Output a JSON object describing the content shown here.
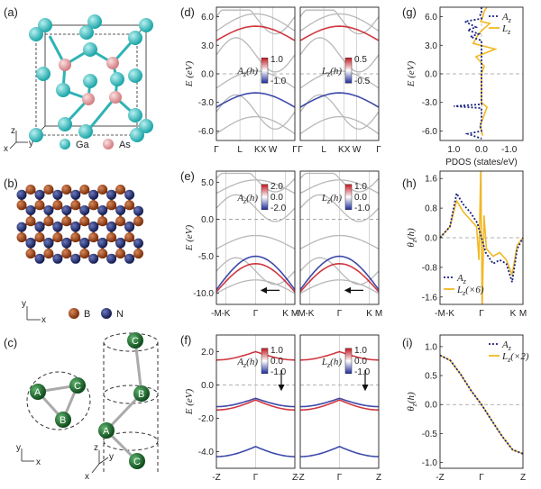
{
  "panel_labels": [
    "(a)",
    "(b)",
    "(c)",
    "(d)",
    "(e)",
    "(f)",
    "(g)",
    "(h)",
    "(i)"
  ],
  "structures": {
    "a": {
      "legend": [
        "Ga",
        "As"
      ],
      "axes": [
        "z",
        "x",
        "y"
      ],
      "colors": {
        "Ga": "#3cc2c2",
        "As": "#e59da0"
      }
    },
    "b": {
      "legend": [
        "B",
        "N"
      ],
      "axes": [
        "y",
        "x"
      ],
      "colors": {
        "B": "#8b3a12",
        "N": "#1f2a63"
      }
    },
    "c": {
      "atoms": [
        "A",
        "B",
        "C"
      ],
      "axes": [
        "y",
        "x"
      ],
      "axes3d": [
        "z",
        "y",
        "x"
      ],
      "colors": {
        "atom": "#1e6b2e"
      }
    }
  },
  "panels": {
    "d": {
      "ylabel": "E (eV)",
      "yticks": [
        "6.0",
        "3.0",
        "0.0",
        "-3.0",
        "-6.0"
      ],
      "xticks": [
        "Γ",
        "L",
        "KX",
        "W",
        "Γ"
      ],
      "left_cbar": {
        "label": "A_z(h)",
        "max": "1.0",
        "min": "-1.0"
      },
      "right_cbar": {
        "label": "L_z(h)",
        "max": "0.5",
        "min": "-0.5"
      }
    },
    "e": {
      "ylabel": "E (eV)",
      "yticks": [
        "5.0",
        "0.0",
        "-5.0",
        "-10.0"
      ],
      "xticks": [
        "-M",
        "-K",
        "Γ",
        "K",
        "M"
      ],
      "left_cbar": {
        "label": "A_z(h)",
        "max": "2.0",
        "mid": "0.0",
        "min": "-2.0"
      },
      "right_cbar": {
        "label": "L_z(h)",
        "max": "1.0",
        "mid": "0.0",
        "min": "-1.0"
      }
    },
    "f": {
      "ylabel": "E (eV)",
      "yticks": [
        "2.0",
        "0.0",
        "-2.0",
        "-4.0"
      ],
      "xticks": [
        "-Z",
        "Γ",
        "Z"
      ],
      "left_cbar": {
        "label": "A_z(h)",
        "max": "1.0",
        "mid": "0.0",
        "min": "-1.0"
      },
      "right_cbar": {
        "label": "L_z(h)",
        "max": "1.0",
        "mid": "0.0",
        "min": "-1.0"
      }
    }
  },
  "chart_data": [
    {
      "panel": "g",
      "type": "line",
      "xlabel": "PDOS (states/eV)",
      "ylabel": "E (eV)",
      "xticks": [
        "1.0",
        "0.0",
        "-1.0"
      ],
      "yticks": [
        "6.0",
        "3.0",
        "0.0",
        "-3.0",
        "-6.0"
      ],
      "xlim": [
        1.5,
        -1.5
      ],
      "ylim": [
        -7,
        7
      ],
      "legend": [
        "A_z",
        "L_z"
      ],
      "legend_position": "top-right",
      "colors": {
        "A_z": "#1a237e",
        "L_z": "#f2b824"
      },
      "series": [
        {
          "name": "A_z",
          "x": [
            0,
            0,
            0.05,
            0,
            0.6,
            0.2,
            0.5,
            0.1,
            0.4,
            0,
            0,
            0,
            1.0,
            0,
            0,
            0.05,
            0,
            0.5,
            0
          ],
          "y": [
            7,
            6.5,
            6.2,
            5.8,
            5.5,
            4.9,
            4.6,
            4.2,
            3.9,
            3.5,
            0,
            -3.2,
            -3.4,
            -3.6,
            -5.0,
            -5.5,
            -6.0,
            -6.3,
            -6.8
          ]
        },
        {
          "name": "L_z",
          "x": [
            -0.2,
            -0.1,
            -0.05,
            0.03,
            -0.3,
            -0.1,
            0.1,
            0.3,
            -0.5,
            0.2,
            -0.1,
            0,
            0,
            -0.2,
            0.05,
            -0.05
          ],
          "y": [
            7,
            6.6,
            6.0,
            5.5,
            5.3,
            4.8,
            4.2,
            3.2,
            2.6,
            1.8,
            0.8,
            0,
            -3.0,
            -3.5,
            -5.5,
            -6.5
          ]
        }
      ]
    },
    {
      "panel": "h",
      "type": "line",
      "ylabel": "θ_z(h)",
      "xticks": [
        "-M",
        "-K",
        "Γ",
        "K",
        "M"
      ],
      "yticks": [
        "1.6",
        "0.8",
        "0.0",
        "-0.8",
        "-1.6"
      ],
      "ylim": [
        -1.8,
        1.8
      ],
      "legend": [
        "A_z",
        "L_z(×6)"
      ],
      "legend_position": "bottom-left",
      "colors": {
        "A_z": "#1a237e",
        "L_z(×6)": "#f2b824"
      },
      "series": [
        {
          "name": "A_z",
          "x": [
            0,
            0.12,
            0.2,
            0.28,
            0.36,
            0.45,
            0.5,
            0.55,
            0.64,
            0.72,
            0.8,
            0.87,
            0.93,
            1.0
          ],
          "y": [
            0,
            0.3,
            1.2,
            0.9,
            0.7,
            0.4,
            0,
            -0.4,
            -0.7,
            -0.6,
            -0.7,
            -1.2,
            -0.3,
            0
          ]
        },
        {
          "name": "L_z(×6)",
          "x": [
            0,
            0.12,
            0.2,
            0.28,
            0.36,
            0.44,
            0.47,
            0.49,
            0.5,
            0.51,
            0.53,
            0.56,
            0.64,
            0.72,
            0.8,
            0.87,
            0.93,
            1.0
          ],
          "y": [
            0,
            0.3,
            1.0,
            0.7,
            0.5,
            0.3,
            -0.6,
            1.8,
            0,
            -1.8,
            0.6,
            -0.3,
            -0.5,
            -0.4,
            -0.6,
            -1.0,
            -0.2,
            0
          ]
        }
      ]
    },
    {
      "panel": "i",
      "type": "line",
      "ylabel": "θ_z(h)",
      "xticks": [
        "-Z",
        "Γ",
        "Z"
      ],
      "yticks": [
        "1.0",
        "0.5",
        "0.0",
        "-0.5",
        "-1.0"
      ],
      "ylim": [
        -1.1,
        1.2
      ],
      "legend": [
        "A_z",
        "L_z(×2)"
      ],
      "legend_position": "top-right",
      "colors": {
        "A_z": "#1a237e",
        "L_z(×2)": "#f2b824"
      },
      "series": [
        {
          "name": "A_z",
          "x": [
            -1,
            -0.75,
            -0.5,
            -0.25,
            0,
            0.25,
            0.5,
            0.75,
            1
          ],
          "y": [
            0.85,
            0.76,
            0.52,
            0.24,
            0,
            -0.28,
            -0.55,
            -0.78,
            -0.85
          ]
        },
        {
          "name": "L_z(×2)",
          "x": [
            -1,
            -0.75,
            -0.5,
            -0.25,
            0,
            0.25,
            0.5,
            0.75,
            1
          ],
          "y": [
            0.85,
            0.76,
            0.52,
            0.24,
            0,
            -0.28,
            -0.55,
            -0.78,
            -0.85
          ]
        }
      ]
    }
  ]
}
